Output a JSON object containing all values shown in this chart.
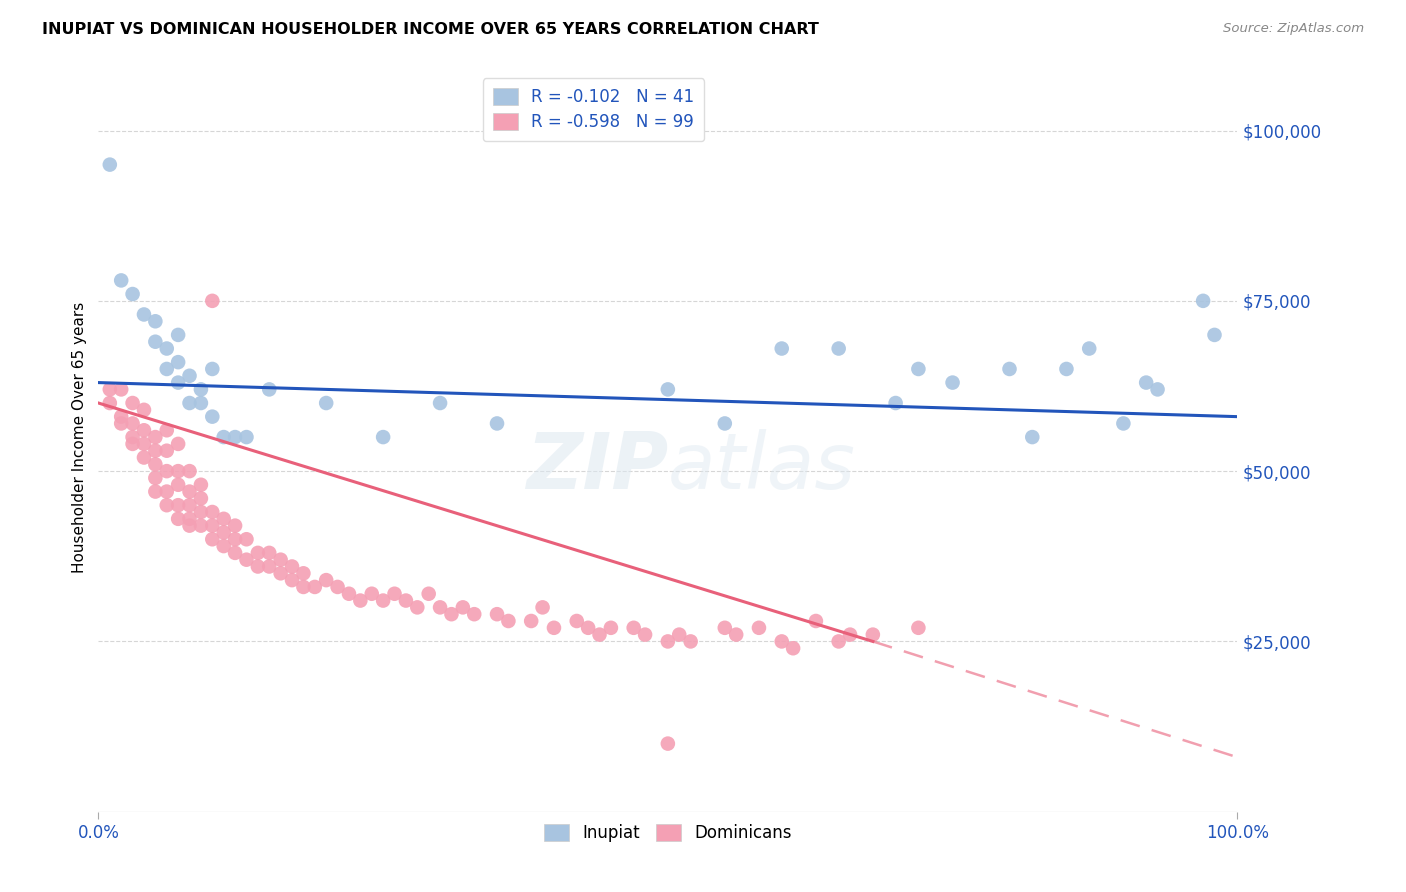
{
  "title": "INUPIAT VS DOMINICAN HOUSEHOLDER INCOME OVER 65 YEARS CORRELATION CHART",
  "source": "Source: ZipAtlas.com",
  "ylabel": "Householder Income Over 65 years",
  "background_color": "#ffffff",
  "grid_color": "#cccccc",
  "watermark_zip": "ZIP",
  "watermark_atlas": "atlas",
  "inupiat_color": "#a8c4e0",
  "dominican_color": "#f4a0b4",
  "inupiat_line_color": "#2255bb",
  "dominican_line_color": "#e8607a",
  "inupiat_R": -0.102,
  "inupiat_N": 41,
  "dominican_R": -0.598,
  "dominican_N": 99,
  "legend_text_color": "#2255bb",
  "ytick_color": "#2255bb",
  "xtick_color": "#2255bb",
  "inupiat_x": [
    0.01,
    0.02,
    0.03,
    0.04,
    0.05,
    0.05,
    0.06,
    0.06,
    0.07,
    0.07,
    0.07,
    0.08,
    0.08,
    0.09,
    0.09,
    0.1,
    0.1,
    0.11,
    0.12,
    0.13,
    0.15,
    0.2,
    0.25,
    0.3,
    0.35,
    0.5,
    0.55,
    0.6,
    0.65,
    0.7,
    0.72,
    0.75,
    0.8,
    0.82,
    0.85,
    0.87,
    0.9,
    0.92,
    0.93,
    0.97,
    0.98
  ],
  "inupiat_y": [
    95000,
    78000,
    76000,
    73000,
    72000,
    69000,
    68000,
    65000,
    70000,
    66000,
    63000,
    64000,
    60000,
    60000,
    62000,
    65000,
    58000,
    55000,
    55000,
    55000,
    62000,
    60000,
    55000,
    60000,
    57000,
    62000,
    57000,
    68000,
    68000,
    60000,
    65000,
    63000,
    65000,
    55000,
    65000,
    68000,
    57000,
    63000,
    62000,
    75000,
    70000
  ],
  "dominican_x": [
    0.01,
    0.01,
    0.02,
    0.02,
    0.02,
    0.03,
    0.03,
    0.03,
    0.03,
    0.04,
    0.04,
    0.04,
    0.04,
    0.05,
    0.05,
    0.05,
    0.05,
    0.05,
    0.06,
    0.06,
    0.06,
    0.06,
    0.06,
    0.07,
    0.07,
    0.07,
    0.07,
    0.07,
    0.08,
    0.08,
    0.08,
    0.08,
    0.08,
    0.09,
    0.09,
    0.09,
    0.09,
    0.1,
    0.1,
    0.1,
    0.1,
    0.11,
    0.11,
    0.11,
    0.12,
    0.12,
    0.12,
    0.13,
    0.13,
    0.14,
    0.14,
    0.15,
    0.15,
    0.16,
    0.16,
    0.17,
    0.17,
    0.18,
    0.18,
    0.19,
    0.2,
    0.21,
    0.22,
    0.23,
    0.24,
    0.25,
    0.26,
    0.27,
    0.28,
    0.29,
    0.3,
    0.31,
    0.32,
    0.33,
    0.35,
    0.36,
    0.38,
    0.39,
    0.4,
    0.42,
    0.43,
    0.44,
    0.45,
    0.47,
    0.48,
    0.5,
    0.51,
    0.52,
    0.55,
    0.56,
    0.58,
    0.6,
    0.61,
    0.63,
    0.65,
    0.66,
    0.68,
    0.72,
    0.5
  ],
  "dominican_y": [
    60000,
    62000,
    58000,
    62000,
    57000,
    60000,
    57000,
    55000,
    54000,
    59000,
    56000,
    54000,
    52000,
    55000,
    53000,
    51000,
    49000,
    47000,
    56000,
    53000,
    50000,
    47000,
    45000,
    54000,
    50000,
    48000,
    45000,
    43000,
    50000,
    47000,
    45000,
    43000,
    42000,
    48000,
    46000,
    44000,
    42000,
    44000,
    42000,
    40000,
    75000,
    43000,
    41000,
    39000,
    42000,
    40000,
    38000,
    40000,
    37000,
    38000,
    36000,
    38000,
    36000,
    37000,
    35000,
    36000,
    34000,
    33000,
    35000,
    33000,
    34000,
    33000,
    32000,
    31000,
    32000,
    31000,
    32000,
    31000,
    30000,
    32000,
    30000,
    29000,
    30000,
    29000,
    29000,
    28000,
    28000,
    30000,
    27000,
    28000,
    27000,
    26000,
    27000,
    27000,
    26000,
    25000,
    26000,
    25000,
    27000,
    26000,
    27000,
    25000,
    24000,
    28000,
    25000,
    26000,
    26000,
    27000,
    10000
  ],
  "xlim": [
    0,
    1.0
  ],
  "ylim": [
    0,
    110000
  ],
  "yticks": [
    0,
    25000,
    50000,
    75000,
    100000
  ],
  "ytick_labels": [
    "",
    "$25,000",
    "$50,000",
    "$75,000",
    "$100,000"
  ],
  "xticks": [
    0.0,
    1.0
  ],
  "xtick_labels": [
    "0.0%",
    "100.0%"
  ]
}
